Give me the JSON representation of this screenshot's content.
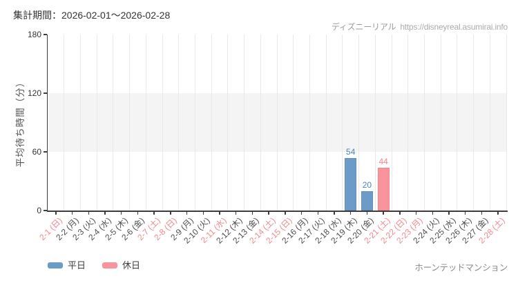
{
  "header": {
    "period_label": "集計期間：2026-02-01～2026-02-28",
    "source_brand": "ディズニーリアル",
    "source_url": "https://disneyreal.asumirai.info"
  },
  "footer": {
    "attraction_label": "ホーンテッドマンション"
  },
  "legend": {
    "items": [
      {
        "label": "平日",
        "type": "weekday"
      },
      {
        "label": "休日",
        "type": "holiday"
      }
    ]
  },
  "chart_data": {
    "type": "bar",
    "title": "集計期間：2026-02-01～2026-02-28",
    "xlabel": "",
    "ylabel": "平均待ち時間（分）",
    "ylim": [
      0,
      180
    ],
    "yticks": [
      0,
      60,
      120,
      180
    ],
    "grid_band": [
      60,
      120
    ],
    "grid": "vertical",
    "legend_position": "bottom-left",
    "colors": {
      "weekday_bar": "#6d9bc7",
      "weekday_bar_border": "#6090bf",
      "weekday_value_label": "#4a84b8",
      "holiday_bar": "#f9949c",
      "holiday_bar_border": "#f5858e",
      "holiday_value_label": "#f8858f",
      "weekday_tick_label": "#4c4c4c",
      "holiday_tick_label": "#f0888d",
      "axis": "#3c3c3c",
      "gridline": "#e9e9e9",
      "band": "#f4f4f4"
    },
    "days": [
      {
        "label": "2-1 (日)",
        "holiday": true,
        "value": null
      },
      {
        "label": "2-2 (月)",
        "holiday": false,
        "value": null
      },
      {
        "label": "2-3 (火)",
        "holiday": false,
        "value": null
      },
      {
        "label": "2-4 (水)",
        "holiday": false,
        "value": null
      },
      {
        "label": "2-5 (木)",
        "holiday": false,
        "value": null
      },
      {
        "label": "2-6 (金)",
        "holiday": false,
        "value": null
      },
      {
        "label": "2-7 (土)",
        "holiday": true,
        "value": null
      },
      {
        "label": "2-8 (日)",
        "holiday": true,
        "value": null
      },
      {
        "label": "2-9 (月)",
        "holiday": false,
        "value": null
      },
      {
        "label": "2-10 (火)",
        "holiday": false,
        "value": null
      },
      {
        "label": "2-11 (水)",
        "holiday": true,
        "value": null
      },
      {
        "label": "2-12 (木)",
        "holiday": false,
        "value": null
      },
      {
        "label": "2-13 (金)",
        "holiday": false,
        "value": null
      },
      {
        "label": "2-14 (土)",
        "holiday": true,
        "value": null
      },
      {
        "label": "2-15 (日)",
        "holiday": true,
        "value": null
      },
      {
        "label": "2-16 (月)",
        "holiday": false,
        "value": null
      },
      {
        "label": "2-17 (火)",
        "holiday": false,
        "value": null
      },
      {
        "label": "2-18 (水)",
        "holiday": false,
        "value": null
      },
      {
        "label": "2-19 (木)",
        "holiday": false,
        "value": 54
      },
      {
        "label": "2-20 (金)",
        "holiday": false,
        "value": 20
      },
      {
        "label": "2-21 (土)",
        "holiday": true,
        "value": 44
      },
      {
        "label": "2-22 (日)",
        "holiday": true,
        "value": null
      },
      {
        "label": "2-23 (月)",
        "holiday": true,
        "value": null
      },
      {
        "label": "2-24 (火)",
        "holiday": false,
        "value": null
      },
      {
        "label": "2-25 (水)",
        "holiday": false,
        "value": null
      },
      {
        "label": "2-26 (木)",
        "holiday": false,
        "value": null
      },
      {
        "label": "2-27 (金)",
        "holiday": false,
        "value": null
      },
      {
        "label": "2-28 (土)",
        "holiday": true,
        "value": null
      }
    ]
  }
}
